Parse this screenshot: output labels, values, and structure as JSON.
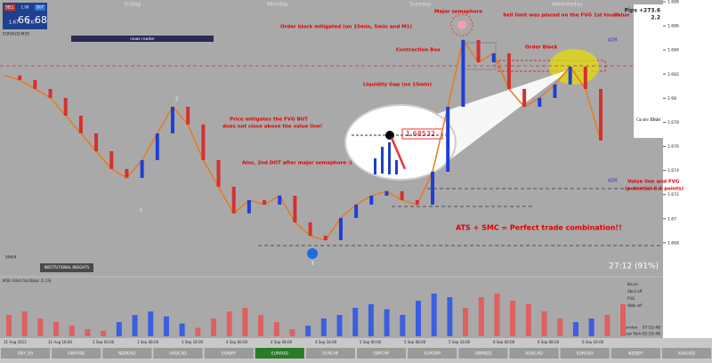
{
  "platform": {
    "symbol": "EURAUD,M30",
    "sell_label": "SELL",
    "buy_label": "BUY",
    "lot": "1.00",
    "sell_big": "1.67",
    "sell_pips": "66",
    "buy_big": "1.67",
    "buy_pips": "68",
    "news": "news reader",
    "days": [
      "Friday",
      "Monday",
      "Tuesday",
      "Wednesday"
    ],
    "pips": "Pips +273.6",
    "spread": "2.2",
    "candle_time_label": "Candle Time",
    "candle_time": "27:14",
    "timer": "27:12 (91%)",
    "adr": "ADR",
    "sma": "SMA4",
    "insight": "INSTITUTIONAL INSIGHTS",
    "london_label": "London",
    "london_time": "07:52:48",
    "ny_label": "New York",
    "ny_time": "02:52:48",
    "osc_title": "M30: Elliot Oscillator (5,13)",
    "osc_legend": [
      "Bnum",
      "Abs2 off",
      "FVG",
      "Walk off"
    ],
    "semaphore_numbers": [
      "1",
      "2",
      "3"
    ]
  },
  "annotations": {
    "order_block_mitigated": "Order block mitigated (on 15min, 5min and M1)",
    "major_semaphore": "Major semaphore",
    "sell_limit": "Sell limit was placed on the FVG 1st touch",
    "value": "Value",
    "order_block": "Order Block",
    "contraction_box": "Contraction Box",
    "liquidity_gap": "Liquidity Gap (on 15min)",
    "price_mitigates_1": "Price mitigates the FVG BUT",
    "price_mitigates_2": "does not close above the value line!",
    "second_dot": "Also, 2nd DOT after major semaphore :)",
    "zoom_price": "1.68532",
    "ats_smc": "ATS + SMC = Perfect trade combination!!",
    "value_line_1": "Value line and FVG",
    "value_line_2": "(potential 8.5 points)"
  },
  "chart_data": {
    "type": "line",
    "ylim": [
      1.666,
      1.688
    ],
    "yticks": [
      1.688,
      1.686,
      1.684,
      1.682,
      1.68,
      1.678,
      1.676,
      1.674,
      1.672,
      1.67,
      1.668
    ],
    "price": [
      1.68188,
      1.68151,
      1.68077,
      1.68003,
      1.67855,
      1.67708,
      1.6756,
      1.67413,
      1.67339,
      1.67486,
      1.67708,
      1.67929,
      1.67782,
      1.67486,
      1.67265,
      1.67044,
      1.67154,
      1.67117,
      1.67191,
      1.6697,
      1.66859,
      1.66822,
      1.67007,
      1.67117,
      1.67191,
      1.67228,
      1.67154,
      1.67117,
      1.6739,
      1.67929,
      1.68483,
      1.68298,
      1.68372,
      1.68077,
      1.67929,
      1.68003,
      1.68114,
      1.68261,
      1.68077,
      1.67649
    ],
    "osc_blue": [
      null,
      null,
      null,
      null,
      null,
      null,
      null,
      20,
      30,
      35,
      28,
      18,
      null,
      null,
      null,
      null,
      null,
      null,
      null,
      15,
      25,
      30,
      40,
      45,
      38,
      30,
      50,
      60,
      55,
      null,
      null,
      null,
      null,
      null,
      null,
      null,
      20,
      25,
      null,
      null
    ],
    "osc_red": [
      30,
      35,
      25,
      20,
      15,
      10,
      8,
      null,
      null,
      null,
      null,
      null,
      12,
      25,
      35,
      40,
      30,
      20,
      10,
      null,
      null,
      null,
      null,
      null,
      null,
      null,
      null,
      null,
      null,
      40,
      55,
      60,
      50,
      45,
      35,
      25,
      null,
      null,
      30,
      45
    ],
    "osc_ylim": [
      0,
      70
    ],
    "xticks": [
      "31 Aug 2023",
      "31 Aug 16:00",
      "1 Sep 00:00",
      "1 Sep 08:00",
      "1 Sep 16:00",
      "4 Sep 00:00",
      "4 Sep 08:00",
      "4 Sep 16:00",
      "5 Sep 00:00",
      "5 Sep 08:00",
      "5 Sep 16:00",
      "6 Sep 00:00",
      "6 Sep 08:00",
      "6 Sep 16:00"
    ]
  },
  "tabs": [
    "DXY_ES",
    "GBPUSD",
    "NZDUSD",
    "USDCAD",
    "EURJPY",
    "EURAUD",
    "EURCHF",
    "GBPCHF",
    "EURGBP",
    "GBPNZD",
    "AUDCAD",
    "EURUSD",
    "NZDJPY",
    "XAUUSD"
  ]
}
